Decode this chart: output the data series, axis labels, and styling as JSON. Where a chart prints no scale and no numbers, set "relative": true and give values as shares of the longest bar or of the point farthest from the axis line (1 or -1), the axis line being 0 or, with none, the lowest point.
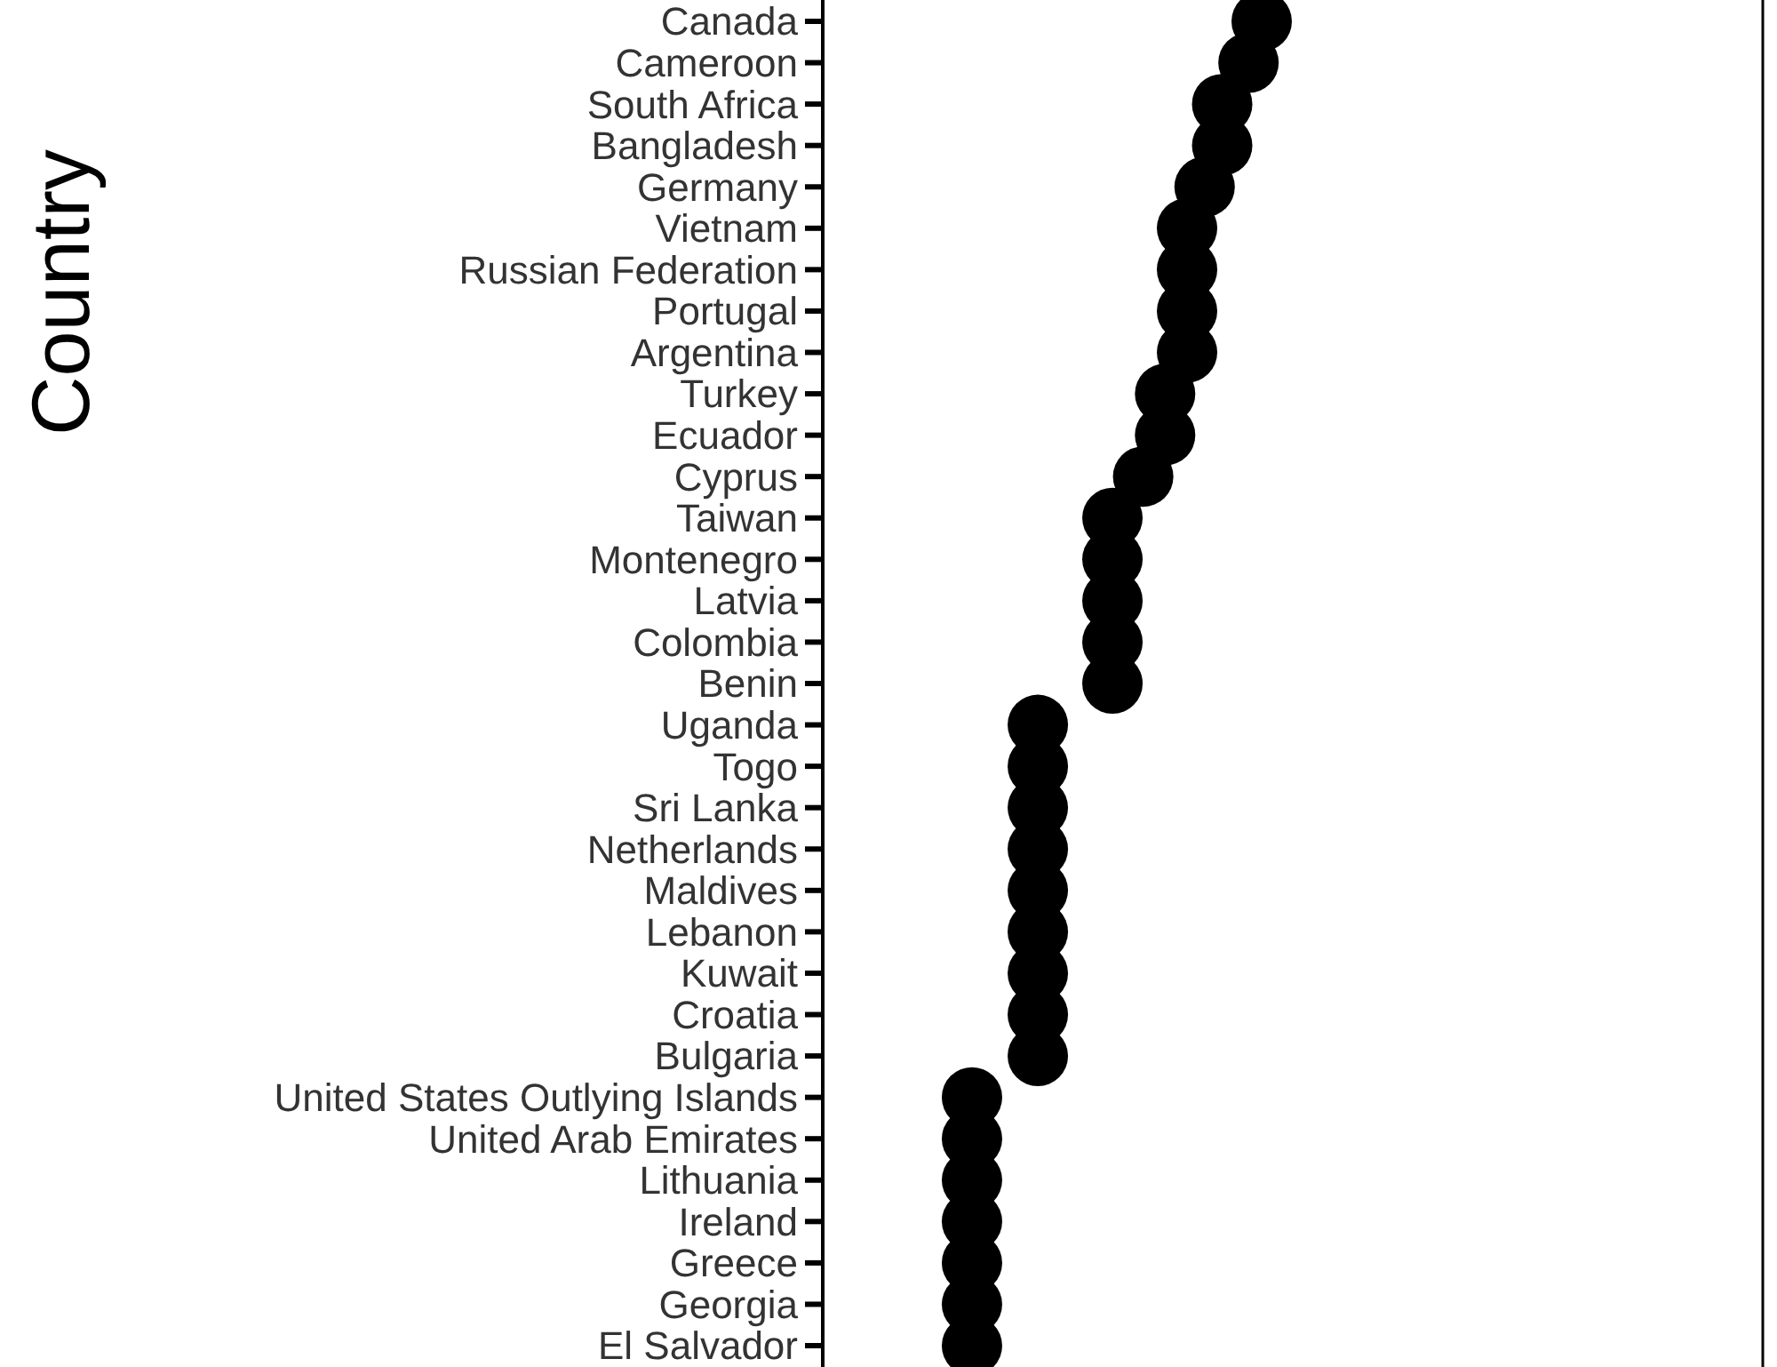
{
  "chart_data": {
    "type": "scatter",
    "ylabel": "Country",
    "orientation": "horizontal",
    "relative": true,
    "marker": "circle",
    "categories": [
      "Canada",
      "Cameroon",
      "South Africa",
      "Bangladesh",
      "Germany",
      "Vietnam",
      "Russian Federation",
      "Portugal",
      "Argentina",
      "Turkey",
      "Ecuador",
      "Cyprus",
      "Taiwan",
      "Montenegro",
      "Latvia",
      "Colombia",
      "Benin",
      "Uganda",
      "Togo",
      "Sri Lanka",
      "Netherlands",
      "Maldives",
      "Lebanon",
      "Kuwait",
      "Croatia",
      "Bulgaria",
      "United States Outlying Islands",
      "United Arab Emirates",
      "Lithuania",
      "Ireland",
      "Greece",
      "Georgia",
      "El Salvador"
    ],
    "series": [
      {
        "color": "#000000",
        "values": [
          1,
          0.97,
          0.91,
          0.91,
          0.87,
          0.83,
          0.83,
          0.83,
          0.83,
          0.78,
          0.78,
          0.73,
          0.66,
          0.66,
          0.66,
          0.66,
          0.66,
          0.49,
          0.49,
          0.49,
          0.49,
          0.49,
          0.49,
          0.49,
          0.49,
          0.49,
          0.34,
          0.34,
          0.34,
          0.34,
          0.34,
          0.34,
          0.34
        ]
      }
    ]
  }
}
